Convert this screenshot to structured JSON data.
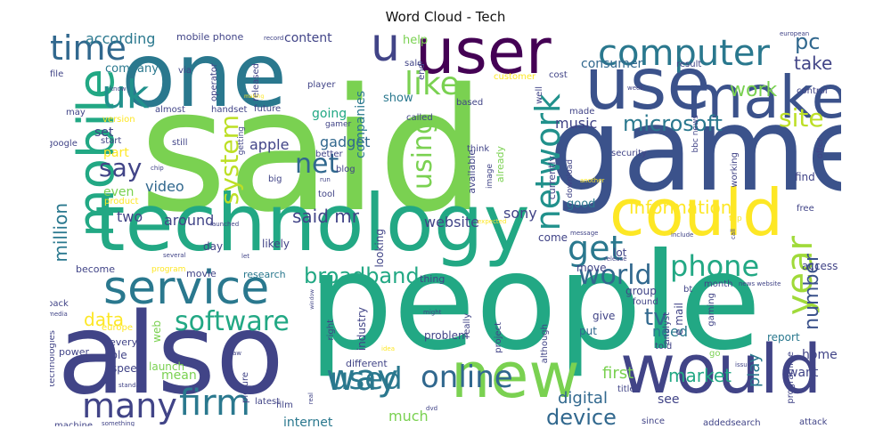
{
  "chart_data": {
    "type": "wordcloud",
    "title": "Word Cloud - Tech",
    "background": "#ffffff",
    "colormap": "viridis",
    "words": [
      {
        "text": "said",
        "weight": 100,
        "color": "#7ad151"
      },
      {
        "text": "people",
        "weight": 86,
        "color": "#22a884"
      },
      {
        "text": "game",
        "weight": 80,
        "color": "#3b528b"
      },
      {
        "text": "also",
        "weight": 78,
        "color": "#414487"
      },
      {
        "text": "one",
        "weight": 70,
        "color": "#2a788e"
      },
      {
        "text": "technology",
        "weight": 60,
        "color": "#22a884"
      },
      {
        "text": "user",
        "weight": 55,
        "color": "#440154"
      },
      {
        "text": "use",
        "weight": 54,
        "color": "#3b528b"
      },
      {
        "text": "would",
        "weight": 50,
        "color": "#414487"
      },
      {
        "text": "new",
        "weight": 48,
        "color": "#7ad151"
      },
      {
        "text": "could",
        "weight": 46,
        "color": "#fde725"
      },
      {
        "text": "make",
        "weight": 44,
        "color": "#3b528b"
      },
      {
        "text": "mobile",
        "weight": 40,
        "color": "#22a884"
      },
      {
        "text": "service",
        "weight": 38,
        "color": "#2a788e"
      },
      {
        "text": "computer",
        "weight": 34,
        "color": "#2a788e"
      },
      {
        "text": "u",
        "weight": 33,
        "color": "#414487"
      },
      {
        "text": "time",
        "weight": 30,
        "color": "#31688e"
      },
      {
        "text": "way",
        "weight": 30,
        "color": "#2a788e"
      },
      {
        "text": "firm",
        "weight": 30,
        "color": "#2a788e"
      },
      {
        "text": "many",
        "weight": 28,
        "color": "#414487"
      },
      {
        "text": "like",
        "weight": 28,
        "color": "#7ad151"
      },
      {
        "text": "uk",
        "weight": 27,
        "color": "#21918c"
      },
      {
        "text": "year",
        "weight": 27,
        "color": "#a0da39"
      },
      {
        "text": "get",
        "weight": 27,
        "color": "#2a788e"
      },
      {
        "text": "online",
        "weight": 26,
        "color": "#31688e"
      },
      {
        "text": "used",
        "weight": 26,
        "color": "#2a788e"
      },
      {
        "text": "network",
        "weight": 26,
        "color": "#21918c"
      },
      {
        "text": "phone",
        "weight": 26,
        "color": "#22a884"
      },
      {
        "text": "software",
        "weight": 25,
        "color": "#22a884"
      },
      {
        "text": "net",
        "weight": 25,
        "color": "#31688e"
      },
      {
        "text": "world",
        "weight": 24,
        "color": "#31688e"
      },
      {
        "text": "site",
        "weight": 22,
        "color": "#bddf26"
      },
      {
        "text": "broadband",
        "weight": 22,
        "color": "#22a884"
      },
      {
        "text": "system",
        "weight": 22,
        "color": "#bddf26"
      },
      {
        "text": "using",
        "weight": 22,
        "color": "#7ad151"
      },
      {
        "text": "say",
        "weight": 20,
        "color": "#414487"
      },
      {
        "text": "microsoft",
        "weight": 20,
        "color": "#2a788e"
      },
      {
        "text": "tv",
        "weight": 20,
        "color": "#31688e"
      },
      {
        "text": "number",
        "weight": 18,
        "color": "#3b528b"
      },
      {
        "text": "device",
        "weight": 18,
        "color": "#31688e"
      },
      {
        "text": "pc",
        "weight": 18,
        "color": "#31688e"
      },
      {
        "text": "take",
        "weight": 17,
        "color": "#414487"
      },
      {
        "text": "work",
        "weight": 17,
        "color": "#7ad151"
      },
      {
        "text": "information",
        "weight": 17,
        "color": "#fde725"
      },
      {
        "text": "market",
        "weight": 16,
        "color": "#22a884"
      },
      {
        "text": "data",
        "weight": 16,
        "color": "#fde725"
      },
      {
        "text": "million",
        "weight": 16,
        "color": "#2a788e"
      },
      {
        "text": "said mr",
        "weight": 16,
        "color": "#414487"
      },
      {
        "text": "first",
        "weight": 16,
        "color": "#7ad151"
      },
      {
        "text": "digital",
        "weight": 15,
        "color": "#31688e"
      },
      {
        "text": "play",
        "weight": 15,
        "color": "#2a788e"
      },
      {
        "text": "website",
        "weight": 14,
        "color": "#414487"
      },
      {
        "text": "sony",
        "weight": 14,
        "color": "#414487"
      },
      {
        "text": "video",
        "weight": 14,
        "color": "#31688e"
      },
      {
        "text": "apple",
        "weight": 14,
        "color": "#414487"
      },
      {
        "text": "music",
        "weight": 14,
        "color": "#414487"
      },
      {
        "text": "gadget",
        "weight": 14,
        "color": "#31688e"
      },
      {
        "text": "consumer",
        "weight": 14,
        "color": "#31688e"
      },
      {
        "text": "need",
        "weight": 14,
        "color": "#2a788e"
      },
      {
        "text": "around",
        "weight": 14,
        "color": "#414487"
      },
      {
        "text": "going",
        "weight": 13,
        "color": "#22a884"
      },
      {
        "text": "content",
        "weight": 13,
        "color": "#414487"
      },
      {
        "text": "companies",
        "weight": 13,
        "color": "#2a788e"
      },
      {
        "text": "according",
        "weight": 13,
        "color": "#2a788e"
      },
      {
        "text": "internet",
        "weight": 13,
        "color": "#2a788e"
      },
      {
        "text": "two",
        "weight": 13,
        "color": "#414487"
      },
      {
        "text": "much",
        "weight": 13,
        "color": "#7ad151"
      },
      {
        "text": "home",
        "weight": 13,
        "color": "#414487"
      },
      {
        "text": "want",
        "weight": 13,
        "color": "#414487"
      },
      {
        "text": "see",
        "weight": 13,
        "color": "#414487"
      },
      {
        "text": "mean",
        "weight": 13,
        "color": "#7ad151"
      },
      {
        "text": "set",
        "weight": 13,
        "color": "#414487"
      },
      {
        "text": "company",
        "weight": 12,
        "color": "#2a788e"
      },
      {
        "text": "show",
        "weight": 12,
        "color": "#2a788e"
      },
      {
        "text": "help",
        "weight": 12,
        "color": "#7ad151"
      },
      {
        "text": "good",
        "weight": 12,
        "color": "#2a788e"
      },
      {
        "text": "even",
        "weight": 12,
        "color": "#7ad151"
      },
      {
        "text": "part",
        "weight": 12,
        "color": "#fde725"
      },
      {
        "text": "problem",
        "weight": 11,
        "color": "#414487"
      },
      {
        "text": "access",
        "weight": 11,
        "color": "#414487"
      },
      {
        "text": "report",
        "weight": 11,
        "color": "#2a788e"
      },
      {
        "text": "find",
        "weight": 11,
        "color": "#414487"
      },
      {
        "text": "give",
        "weight": 11,
        "color": "#414487"
      },
      {
        "text": "put",
        "weight": 11,
        "color": "#31688e"
      },
      {
        "text": "move",
        "weight": 11,
        "color": "#414487"
      },
      {
        "text": "group",
        "weight": 11,
        "color": "#414487"
      },
      {
        "text": "lot",
        "weight": 11,
        "color": "#414487"
      },
      {
        "text": "come",
        "weight": 11,
        "color": "#414487"
      },
      {
        "text": "speed",
        "weight": 11,
        "color": "#414487"
      },
      {
        "text": "able",
        "weight": 11,
        "color": "#414487"
      },
      {
        "text": "launch",
        "weight": 11,
        "color": "#7ad151"
      },
      {
        "text": "web",
        "weight": 11,
        "color": "#7ad151"
      },
      {
        "text": "day",
        "weight": 11,
        "color": "#414487"
      },
      {
        "text": "likely",
        "weight": 11,
        "color": "#414487"
      },
      {
        "text": "research",
        "weight": 10,
        "color": "#2a788e"
      },
      {
        "text": "movie",
        "weight": 10,
        "color": "#414487"
      },
      {
        "text": "thing",
        "weight": 10,
        "color": "#414487"
      },
      {
        "text": "become",
        "weight": 10,
        "color": "#414487"
      },
      {
        "text": "different",
        "weight": 10,
        "color": "#414487"
      },
      {
        "text": "industry",
        "weight": 10,
        "color": "#414487"
      },
      {
        "text": "looking",
        "weight": 10,
        "color": "#414487"
      },
      {
        "text": "currently",
        "weight": 10,
        "color": "#414487"
      },
      {
        "text": "already",
        "weight": 10,
        "color": "#7ad151"
      },
      {
        "text": "available",
        "weight": 10,
        "color": "#414487"
      },
      {
        "text": "every",
        "weight": 10,
        "color": "#414487"
      },
      {
        "text": "power",
        "weight": 10,
        "color": "#414487"
      },
      {
        "text": "europe",
        "weight": 9,
        "color": "#fde725"
      },
      {
        "text": "programme",
        "weight": 9,
        "color": "#414487"
      },
      {
        "text": "month",
        "weight": 9,
        "color": "#414487"
      },
      {
        "text": "found",
        "weight": 9,
        "color": "#414487"
      },
      {
        "text": "told",
        "weight": 9,
        "color": "#414487"
      },
      {
        "text": "title",
        "weight": 9,
        "color": "#414487"
      },
      {
        "text": "attack",
        "weight": 9,
        "color": "#414487"
      },
      {
        "text": "since",
        "weight": 9,
        "color": "#414487"
      },
      {
        "text": "addedsearch",
        "weight": 9,
        "color": "#414487"
      },
      {
        "text": "e mail",
        "weight": 9,
        "color": "#414487"
      },
      {
        "text": "analyst",
        "weight": 9,
        "color": "#414487"
      },
      {
        "text": "go",
        "weight": 9,
        "color": "#7ad151"
      },
      {
        "text": "free",
        "weight": 9,
        "color": "#414487"
      },
      {
        "text": "offer",
        "weight": 9,
        "color": "#414487"
      },
      {
        "text": "working",
        "weight": 9,
        "color": "#414487"
      },
      {
        "text": "gaming",
        "weight": 9,
        "color": "#414487"
      },
      {
        "text": "security",
        "weight": 9,
        "color": "#414487"
      },
      {
        "text": "control",
        "weight": 9,
        "color": "#414487"
      },
      {
        "text": "result",
        "weight": 9,
        "color": "#414487"
      },
      {
        "text": "well",
        "weight": 9,
        "color": "#414487"
      },
      {
        "text": "made",
        "weight": 9,
        "color": "#414487"
      },
      {
        "text": "cost",
        "weight": 9,
        "color": "#414487"
      },
      {
        "text": "customer",
        "weight": 9,
        "color": "#fde725"
      },
      {
        "text": "sale",
        "weight": 9,
        "color": "#414487"
      },
      {
        "text": "end",
        "weight": 9,
        "color": "#414487"
      },
      {
        "text": "based",
        "weight": 9,
        "color": "#414487"
      },
      {
        "text": "called",
        "weight": 9,
        "color": "#414487"
      },
      {
        "text": "think",
        "weight": 9,
        "color": "#414487"
      },
      {
        "text": "better",
        "weight": 9,
        "color": "#414487"
      },
      {
        "text": "blog",
        "weight": 9,
        "color": "#414487"
      },
      {
        "text": "tool",
        "weight": 9,
        "color": "#414487"
      },
      {
        "text": "player",
        "weight": 9,
        "color": "#414487"
      },
      {
        "text": "released",
        "weight": 9,
        "color": "#414487"
      },
      {
        "text": "gamer",
        "weight": 8,
        "color": "#414487"
      },
      {
        "text": "image",
        "weight": 8,
        "color": "#414487"
      },
      {
        "text": "mobile phone",
        "weight": 9,
        "color": "#414487"
      },
      {
        "text": "via",
        "weight": 9,
        "color": "#414487"
      },
      {
        "text": "operator",
        "weight": 9,
        "color": "#414487"
      },
      {
        "text": "handset",
        "weight": 9,
        "color": "#414487"
      },
      {
        "text": "future",
        "weight": 9,
        "color": "#414487"
      },
      {
        "text": "almost",
        "weight": 9,
        "color": "#414487"
      },
      {
        "text": "getting",
        "weight": 8,
        "color": "#414487"
      },
      {
        "text": "still",
        "weight": 9,
        "color": "#414487"
      },
      {
        "text": "start",
        "weight": 9,
        "color": "#414487"
      },
      {
        "text": "google",
        "weight": 9,
        "color": "#414487"
      },
      {
        "text": "product",
        "weight": 9,
        "color": "#fde725"
      },
      {
        "text": "version",
        "weight": 9,
        "color": "#fde725"
      },
      {
        "text": "file",
        "weight": 9,
        "color": "#414487"
      },
      {
        "text": "may",
        "weight": 9,
        "color": "#414487"
      },
      {
        "text": "big",
        "weight": 9,
        "color": "#414487"
      },
      {
        "text": "right",
        "weight": 9,
        "color": "#414487"
      },
      {
        "text": "project",
        "weight": 9,
        "color": "#414487"
      },
      {
        "text": "really",
        "weight": 9,
        "color": "#414487"
      },
      {
        "text": "although",
        "weight": 9,
        "color": "#414487"
      },
      {
        "text": "picture",
        "weight": 9,
        "color": "#414487"
      },
      {
        "text": "film",
        "weight": 9,
        "color": "#414487"
      },
      {
        "text": "latest",
        "weight": 9,
        "color": "#414487"
      },
      {
        "text": "machine",
        "weight": 9,
        "color": "#414487"
      },
      {
        "text": "technologies",
        "weight": 9,
        "color": "#414487"
      },
      {
        "text": "back",
        "weight": 9,
        "color": "#414487"
      },
      {
        "text": "program",
        "weight": 8,
        "color": "#fde725"
      },
      {
        "text": "bbc news",
        "weight": 8,
        "color": "#414487"
      },
      {
        "text": "bt",
        "weight": 9,
        "color": "#414487"
      },
      {
        "text": "top",
        "weight": 8,
        "color": "#fde725"
      },
      {
        "text": "download",
        "weight": 8,
        "color": "#414487"
      },
      {
        "text": "another",
        "weight": 7,
        "color": "#fde725"
      },
      {
        "text": "european",
        "weight": 7,
        "color": "#414487"
      },
      {
        "text": "include",
        "weight": 7,
        "color": "#414487"
      },
      {
        "text": "release",
        "weight": 7,
        "color": "#414487"
      },
      {
        "text": "message",
        "weight": 7,
        "color": "#414487"
      },
      {
        "text": "expected",
        "weight": 7,
        "color": "#fde725"
      },
      {
        "text": "news website",
        "weight": 7,
        "color": "#414487"
      },
      {
        "text": "issue",
        "weight": 7,
        "color": "#414487"
      },
      {
        "text": "call",
        "weight": 7,
        "color": "#414487"
      },
      {
        "text": "might",
        "weight": 7,
        "color": "#414487"
      },
      {
        "text": "idea",
        "weight": 7,
        "color": "#fde725"
      },
      {
        "text": "dvd",
        "weight": 7,
        "color": "#414487"
      },
      {
        "text": "real",
        "weight": 7,
        "color": "#414487"
      },
      {
        "text": "law",
        "weight": 7,
        "color": "#414487"
      },
      {
        "text": "window",
        "weight": 6,
        "color": "#414487"
      },
      {
        "text": "let",
        "weight": 7,
        "color": "#414487"
      },
      {
        "text": "several",
        "weight": 7,
        "color": "#414487"
      },
      {
        "text": "launched",
        "weight": 7,
        "color": "#414487"
      },
      {
        "text": "run",
        "weight": 7,
        "color": "#414487"
      },
      {
        "text": "chip",
        "weight": 7,
        "color": "#414487"
      },
      {
        "text": "record",
        "weight": 7,
        "color": "#414487"
      },
      {
        "text": "making",
        "weight": 6,
        "color": "#fde725"
      },
      {
        "text": "know",
        "weight": 7,
        "color": "#414487"
      },
      {
        "text": "standard",
        "weight": 7,
        "color": "#414487"
      },
      {
        "text": "something",
        "weight": 7,
        "color": "#414487"
      },
      {
        "text": "media",
        "weight": 7,
        "color": "#414487"
      },
      {
        "text": "week",
        "weight": 7,
        "color": "#414487"
      }
    ]
  }
}
